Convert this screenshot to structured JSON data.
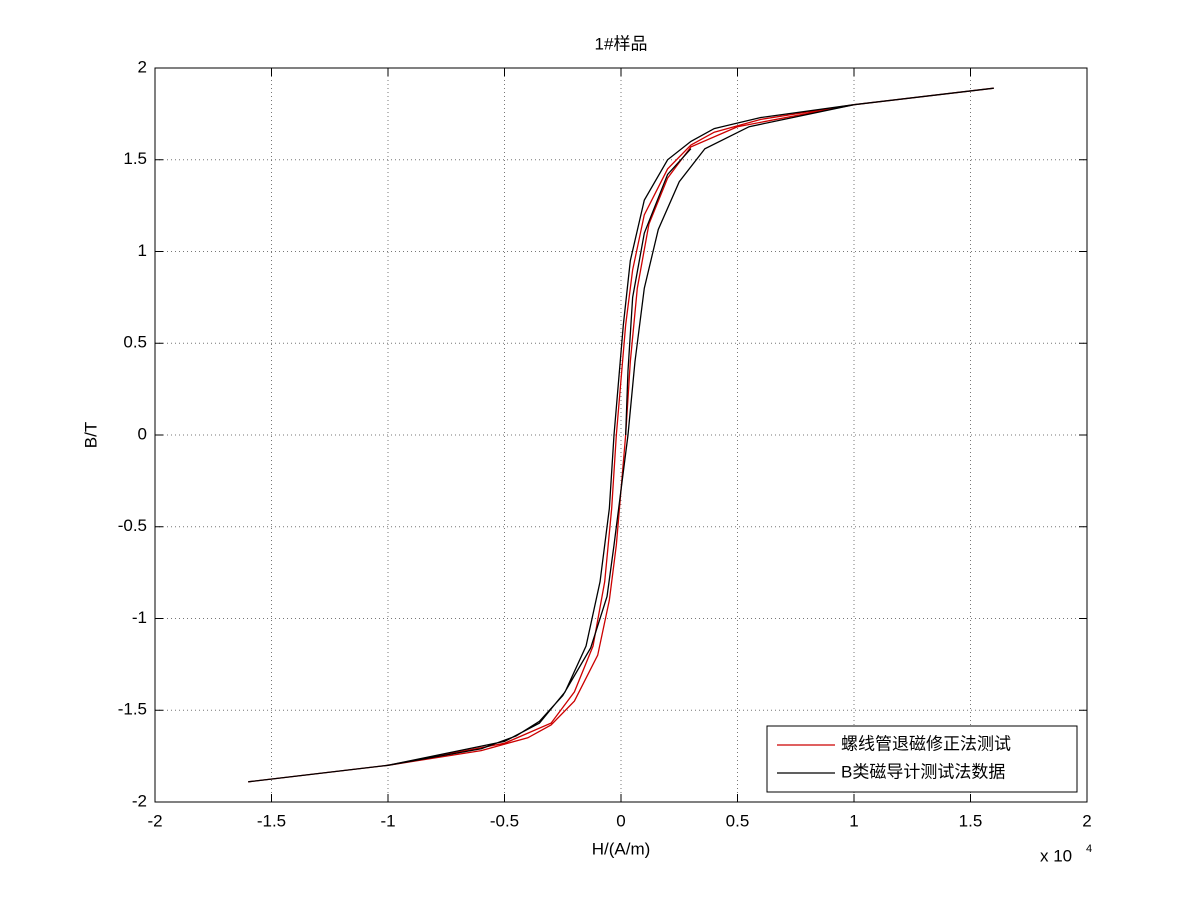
{
  "chart_data": {
    "type": "line",
    "title": "1#样品",
    "x_label": "H/(A/m)",
    "y_label": "B/T",
    "x_multiplier": {
      "base": "x 10",
      "exponent": "4"
    },
    "xlim": [
      -2,
      2
    ],
    "xticks": [
      -2,
      -1.5,
      -1,
      -0.5,
      0,
      0.5,
      1,
      1.5,
      2
    ],
    "ylim": [
      -2,
      2
    ],
    "yticks": [
      -2,
      -1.5,
      -1,
      -0.5,
      0,
      0.5,
      1,
      1.5,
      2
    ],
    "grid": true,
    "legend": "lower right",
    "series": [
      {
        "name": "螺线管退磁修正法测试",
        "color": "#cc0000",
        "x": [
          1.6,
          1.0,
          0.6,
          0.4,
          0.3,
          0.2,
          0.1,
          0.05,
          0.02,
          0,
          -0.02,
          -0.04,
          -0.07,
          -0.12,
          -0.2,
          -0.3,
          -0.5,
          -1.0,
          -1.6,
          -1.0,
          -0.6,
          -0.4,
          -0.3,
          -0.2,
          -0.1,
          -0.05,
          -0.02,
          0,
          0.02,
          0.04,
          0.07,
          0.12,
          0.2,
          0.3,
          0.5,
          1.0,
          1.6
        ],
        "values": [
          1.89,
          1.8,
          1.72,
          1.65,
          1.58,
          1.45,
          1.2,
          0.9,
          0.6,
          0.3,
          0,
          -0.4,
          -0.8,
          -1.15,
          -1.4,
          -1.57,
          -1.68,
          -1.8,
          -1.89,
          -1.8,
          -1.72,
          -1.65,
          -1.58,
          -1.45,
          -1.2,
          -0.9,
          -0.6,
          -0.3,
          0,
          0.4,
          0.8,
          1.15,
          1.4,
          1.57,
          1.68,
          1.8,
          1.89
        ]
      },
      {
        "name": "B类磁导计测试法数据",
        "color": "#000000",
        "x": [
          1.6,
          1.0,
          0.6,
          0.4,
          0.3,
          0.2,
          0.1,
          0.04,
          0.01,
          -0.01,
          -0.03,
          -0.05,
          -0.09,
          -0.15,
          -0.24,
          -0.35,
          -0.5,
          -1.0,
          -1.6,
          -1.0,
          -0.6,
          -0.45,
          -0.35,
          -0.25,
          -0.13,
          -0.06,
          -0.03,
          0,
          0.03,
          0.06,
          0.1,
          0.16,
          0.25,
          0.36,
          0.55,
          1.0,
          1.6,
          0.01,
          0.02,
          0.03,
          0.05,
          0.1,
          0.2,
          0.3
        ],
        "values": [
          1.89,
          1.8,
          1.73,
          1.67,
          1.6,
          1.5,
          1.28,
          0.95,
          0.6,
          0.3,
          0,
          -0.4,
          -0.8,
          -1.15,
          -1.4,
          -1.57,
          -1.67,
          -1.8,
          -1.89,
          -1.8,
          -1.71,
          -1.64,
          -1.56,
          -1.42,
          -1.16,
          -0.88,
          -0.6,
          -0.3,
          0,
          0.4,
          0.8,
          1.12,
          1.38,
          1.56,
          1.68,
          1.8,
          1.89,
          null,
          0,
          0.35,
          0.75,
          1.1,
          1.42,
          1.56
        ]
      }
    ]
  }
}
